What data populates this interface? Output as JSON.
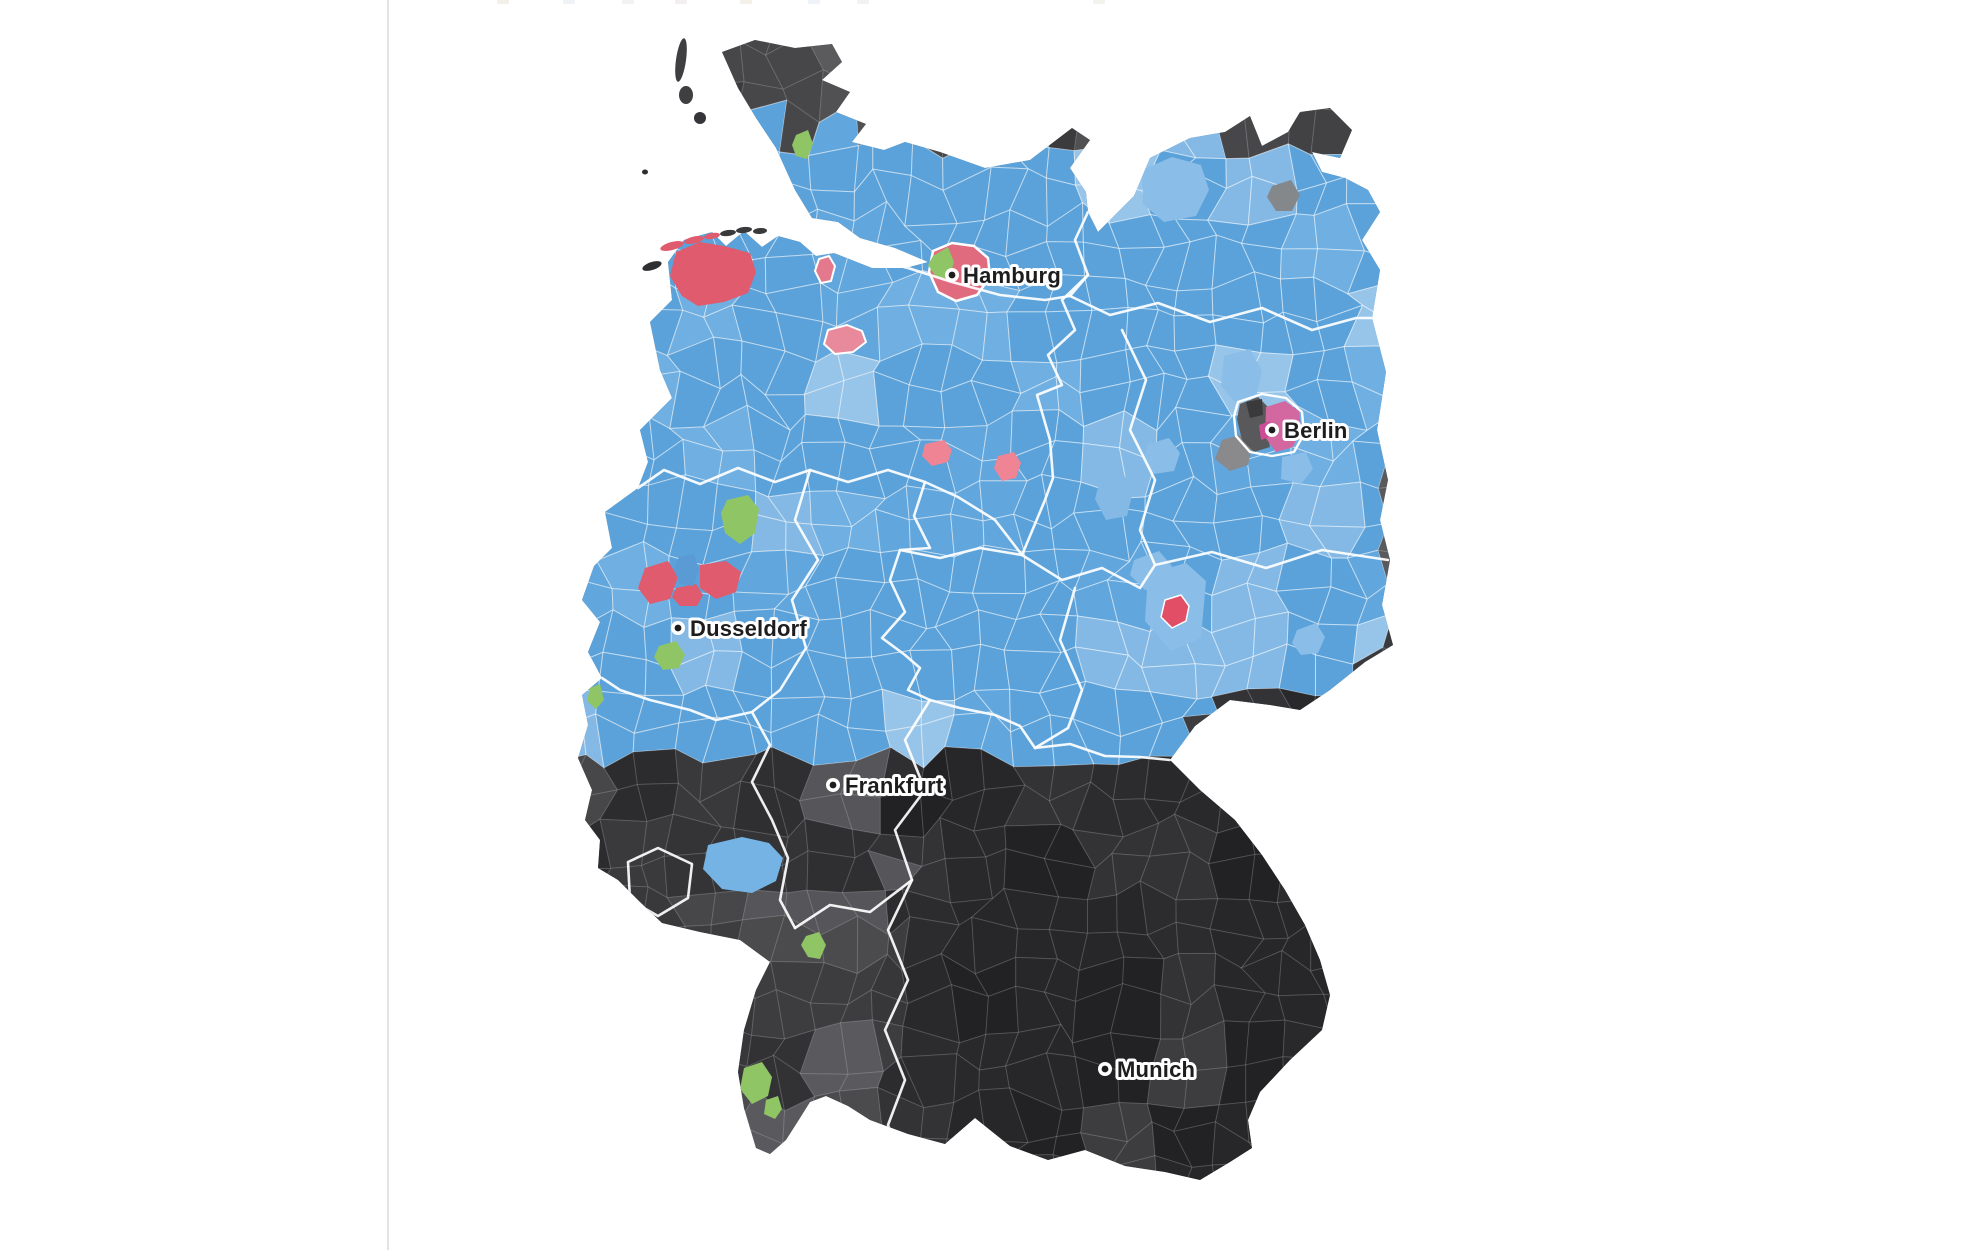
{
  "map": {
    "cities": [
      {
        "name": "Hamburg"
      },
      {
        "name": "Berlin"
      },
      {
        "name": "Dusseldorf"
      },
      {
        "name": "Frankfurt"
      },
      {
        "name": "Munich"
      }
    ],
    "colors": {
      "west_dark_gray": "#333336",
      "east_blue": "#5ba2da",
      "east_blue_light": "#8abde7",
      "red": "#df5b6d",
      "red_light": "#ee8494",
      "crimson": "#e24e66",
      "green": "#8fc564",
      "pink_magenta": "#d3679f",
      "west_blue_spot": "#5b9bd5",
      "west_blue_light_spot": "#74b3e4",
      "city_gray": "#8a8a8c",
      "border_line": "#ffffff",
      "background": "#ffffff",
      "divider": "#e3e3e3"
    }
  }
}
